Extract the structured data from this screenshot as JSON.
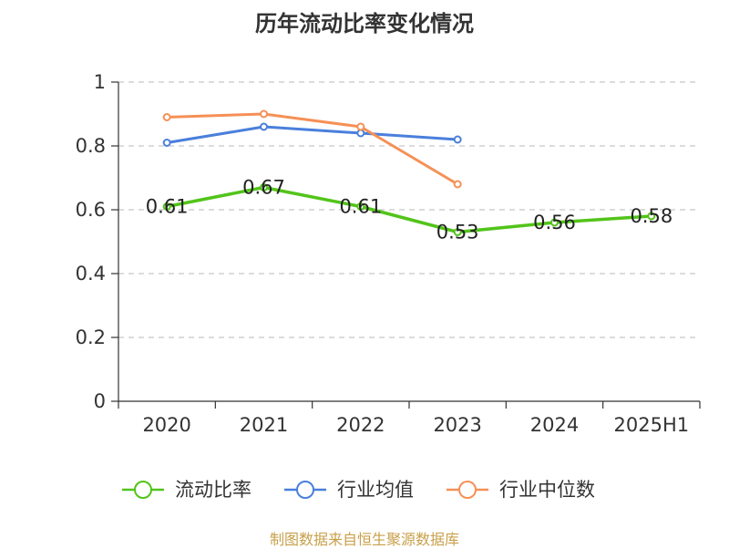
{
  "chart_data": {
    "type": "line",
    "title": "历年流动比率变化情况",
    "categories": [
      "2020",
      "2021",
      "2022",
      "2023",
      "2024",
      "2025H1"
    ],
    "ylim": [
      0,
      1
    ],
    "yticks": [
      "0",
      "0.2",
      "0.4",
      "0.6",
      "0.8",
      "1"
    ],
    "ytick_values": [
      0,
      0.2,
      0.4,
      0.6,
      0.8,
      1
    ],
    "grid": true,
    "legend_position": "bottom",
    "series": [
      {
        "name": "流动比率",
        "color": "#52c41a",
        "values": [
          0.61,
          0.67,
          0.61,
          0.53,
          0.56,
          0.58
        ],
        "labels": [
          "0.61",
          "0.67",
          "0.61",
          "0.53",
          "0.56",
          "0.58"
        ]
      },
      {
        "name": "行业均值",
        "color": "#4a7fdc",
        "values": [
          0.81,
          0.86,
          0.84,
          0.82,
          null,
          null
        ]
      },
      {
        "name": "行业中位数",
        "color": "#f59056",
        "values": [
          0.89,
          0.9,
          0.86,
          0.68,
          null,
          null
        ]
      }
    ]
  },
  "source": "制图数据来自恒生聚源数据库"
}
